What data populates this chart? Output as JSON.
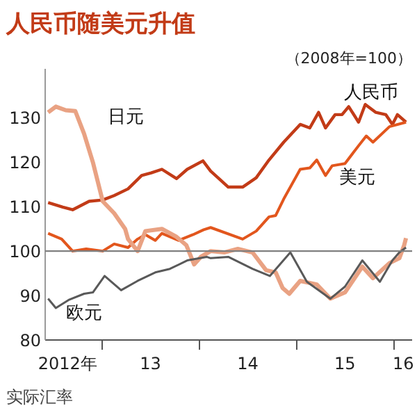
{
  "chart_data": {
    "type": "line",
    "title": "人民币随美元升值",
    "subtitle": "（2008年=100）",
    "annotations": [
      "实际汇率"
    ],
    "xlim": [
      "2012-06-03",
      "2016-03-11"
    ],
    "ylim": [
      80,
      141
    ],
    "xticks": [
      {
        "value": "2012-08-26",
        "label": "2012年"
      },
      {
        "value": "2013-07-03",
        "label": "13"
      },
      {
        "value": "2014-07-03",
        "label": "14"
      },
      {
        "value": "2015-07-03",
        "label": "15"
      },
      {
        "value": "2016-02-07",
        "label": "16"
      },
      {
        "value": "2013-01-01",
        "label": null
      },
      {
        "value": "2014-01-01",
        "label": null
      },
      {
        "value": "2015-01-01",
        "label": null
      },
      {
        "value": "2016-01-01",
        "label": null
      }
    ],
    "yticks": [
      80,
      90,
      100,
      110,
      120,
      130
    ],
    "grid": false,
    "marker": "none",
    "line_style": "solid",
    "ref_lines": [
      {
        "axis": "y",
        "value": 100,
        "label": null,
        "color": "#7f7f7f"
      }
    ],
    "series": [
      {
        "name": "人民币",
        "color": "#c23b17",
        "x": [
          "2012-06-14",
          "2012-08-08",
          "2012-09-14",
          "2012-11-15",
          "2013-01-05",
          "2013-02-17",
          "2013-04-10",
          "2013-05-31",
          "2013-07-06",
          "2013-08-15",
          "2013-10-09",
          "2013-11-18",
          "2014-01-16",
          "2014-02-14",
          "2014-04-21",
          "2014-06-14",
          "2014-08-04",
          "2014-09-21",
          "2014-11-15",
          "2015-01-16",
          "2015-02-21",
          "2015-03-26",
          "2015-04-21",
          "2015-05-27",
          "2015-06-22",
          "2015-07-17",
          "2015-08-23",
          "2015-09-17",
          "2015-10-27",
          "2015-12-03",
          "2015-12-28",
          "2016-01-16",
          "2016-02-17"
        ],
        "values": [
          110.9,
          109.9,
          109.3,
          111.2,
          111.5,
          112.5,
          114,
          117,
          117.6,
          118.4,
          116.3,
          118.4,
          120.3,
          118,
          114.4,
          114.4,
          116.5,
          120.5,
          124.5,
          128.5,
          127.7,
          131.2,
          127.7,
          130.7,
          130.7,
          132.5,
          129,
          133,
          131.2,
          130.7,
          128.5,
          130.7,
          129
        ]
      },
      {
        "name": "美元",
        "color": "#e2561d",
        "x": [
          "2012-06-14",
          "2012-08-04",
          "2012-09-14",
          "2012-11-04",
          "2013-01-05",
          "2013-02-17",
          "2013-04-10",
          "2013-05-16",
          "2013-06-14",
          "2013-07-21",
          "2013-08-15",
          "2013-10-16",
          "2013-12-10",
          "2014-01-19",
          "2014-02-14",
          "2014-06-14",
          "2014-08-04",
          "2014-09-21",
          "2014-10-16",
          "2014-11-15",
          "2015-01-16",
          "2015-02-21",
          "2015-03-19",
          "2015-04-21",
          "2015-05-16",
          "2015-07-03",
          "2015-08-23",
          "2015-09-21",
          "2015-10-16",
          "2015-12-17",
          "2016-02-17"
        ],
        "values": [
          104,
          102.7,
          100,
          100.5,
          100,
          101.6,
          100.8,
          102.7,
          103.7,
          102.4,
          104,
          102.4,
          103.7,
          104.8,
          105.3,
          102.7,
          104.5,
          107.7,
          108,
          111.7,
          118.4,
          118.7,
          120.5,
          117,
          119.2,
          119.7,
          123.7,
          125.9,
          124.5,
          128,
          129
        ]
      },
      {
        "name": "日元",
        "color": "#e9a283",
        "x": [
          "2012-06-14",
          "2012-07-13",
          "2012-08-19",
          "2012-09-24",
          "2012-10-27",
          "2012-11-29",
          "2013-01-05",
          "2013-02-17",
          "2013-03-30",
          "2013-04-10",
          "2013-05-16",
          "2013-06-14",
          "2013-08-15",
          "2013-10-09",
          "2013-11-15",
          "2013-12-14",
          "2014-01-08",
          "2014-02-14",
          "2014-04-06",
          "2014-05-27",
          "2014-07-21",
          "2014-09-10",
          "2014-10-16",
          "2014-11-11",
          "2014-12-06",
          "2015-01-16",
          "2015-03-19",
          "2015-05-09",
          "2015-07-03",
          "2015-09-06",
          "2015-10-16",
          "2015-12-17",
          "2016-01-23",
          "2016-02-10",
          "2016-02-17"
        ],
        "values": [
          131.2,
          132.5,
          131.7,
          131.5,
          126.4,
          120,
          111.2,
          108.5,
          105,
          102.7,
          100,
          104.5,
          105,
          103.2,
          101.3,
          97,
          98.7,
          100,
          99.7,
          100.5,
          99.7,
          95.7,
          95.2,
          91.7,
          90.4,
          93.3,
          92.5,
          89.3,
          90.7,
          96.5,
          93.9,
          97.3,
          98.4,
          101.3,
          102.9
        ]
      },
      {
        "name": "欧元",
        "color": "#595959",
        "x": [
          "2012-06-14",
          "2012-07-13",
          "2012-08-30",
          "2012-10-27",
          "2012-11-29",
          "2013-01-12",
          "2013-03-15",
          "2013-05-16",
          "2013-07-21",
          "2013-09-14",
          "2013-11-18",
          "2014-01-30",
          "2014-02-14",
          "2014-04-21",
          "2014-07-21",
          "2014-09-24",
          "2014-12-10",
          "2015-02-10",
          "2015-05-09",
          "2015-07-03",
          "2015-09-06",
          "2015-11-11",
          "2015-12-28",
          "2016-01-23",
          "2016-02-17"
        ],
        "values": [
          89.3,
          87.2,
          89,
          90.4,
          90.7,
          94.4,
          91.2,
          93.3,
          95.2,
          96,
          97.9,
          98.7,
          98.4,
          98.7,
          96,
          94.4,
          99.7,
          93.1,
          89.3,
          92,
          97.9,
          93.1,
          97.9,
          99.7,
          100.8
        ]
      }
    ]
  }
}
